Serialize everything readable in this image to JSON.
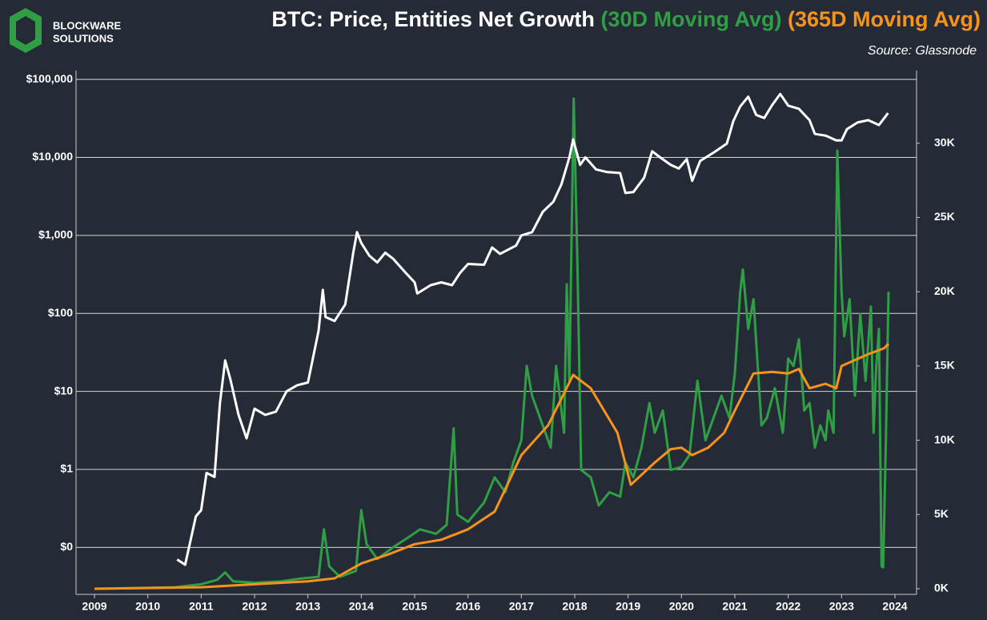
{
  "logo_text": [
    "BLOCKWARE",
    "SOLUTIONS"
  ],
  "chart_data": {
    "type": "line",
    "title": "BTC: Price, Entities Net Growth",
    "source": "Source: Glassnode",
    "ylog": true,
    "grid": true,
    "xlim": [
      2008.655,
      2024.405
    ],
    "xticks": [
      2009,
      2010,
      2011,
      2012,
      2013,
      2014,
      2015,
      2016,
      2017,
      2018,
      2019,
      2020,
      2021,
      2022,
      2023,
      2024
    ],
    "ylim": [
      0.025,
      130000
    ],
    "yticks": [
      {
        "value": 0.1,
        "label": "$0"
      },
      {
        "value": 1,
        "label": "$1"
      },
      {
        "value": 10,
        "label": "$10"
      },
      {
        "value": 100,
        "label": "$100"
      },
      {
        "value": 1000,
        "label": "$1,000"
      },
      {
        "value": 10000,
        "label": "$10,000"
      },
      {
        "value": 100000,
        "label": "$100,000"
      }
    ],
    "y2lim": [
      -380,
      34900
    ],
    "y2ticks": [
      {
        "value": 0,
        "label": "0K"
      },
      {
        "value": 5000,
        "label": "5K"
      },
      {
        "value": 10000,
        "label": "10K"
      },
      {
        "value": 15000,
        "label": "15K"
      },
      {
        "value": 20000,
        "label": "20K"
      },
      {
        "value": 25000,
        "label": "25K"
      },
      {
        "value": 30000,
        "label": "30K"
      }
    ],
    "series": [
      {
        "color": "#ffffff",
        "x": [
          2010.55,
          2010.7,
          2010.9,
          2011.0,
          2011.1,
          2011.25,
          2011.35,
          2011.45,
          2011.55,
          2011.7,
          2011.85,
          2011.95,
          2012.0,
          2012.2,
          2012.4,
          2012.6,
          2012.8,
          2013.0,
          2013.2,
          2013.28,
          2013.33,
          2013.5,
          2013.7,
          2013.85,
          2013.92,
          2014.0,
          2014.15,
          2014.3,
          2014.45,
          2014.6,
          2014.8,
          2015.0,
          2015.05,
          2015.3,
          2015.5,
          2015.7,
          2015.85,
          2016.0,
          2016.3,
          2016.45,
          2016.6,
          2016.9,
          2017.0,
          2017.2,
          2017.4,
          2017.6,
          2017.75,
          2017.9,
          2017.97,
          2018.1,
          2018.2,
          2018.4,
          2018.6,
          2018.85,
          2018.95,
          2019.1,
          2019.3,
          2019.45,
          2019.6,
          2019.8,
          2019.95,
          2020.1,
          2020.2,
          2020.35,
          2020.6,
          2020.85,
          2020.97,
          2021.1,
          2021.25,
          2021.4,
          2021.55,
          2021.7,
          2021.85,
          2022.0,
          2022.2,
          2022.4,
          2022.5,
          2022.7,
          2022.9,
          2023.0,
          2023.1,
          2023.3,
          2023.5,
          2023.7,
          2023.83,
          2023.87
        ],
        "values": [
          0.07,
          0.06,
          0.25,
          0.3,
          0.9,
          0.8,
          7,
          25,
          14,
          5,
          2.5,
          4.5,
          6,
          5,
          5.5,
          10,
          12,
          13,
          60,
          200,
          90,
          80,
          130,
          600,
          1100,
          800,
          550,
          450,
          600,
          500,
          350,
          250,
          180,
          230,
          250,
          230,
          330,
          430,
          420,
          700,
          580,
          740,
          1000,
          1100,
          2000,
          2700,
          4500,
          10000,
          17000,
          8000,
          10000,
          7000,
          6500,
          6300,
          3500,
          3600,
          5500,
          12000,
          10000,
          8000,
          7200,
          9500,
          5000,
          9000,
          11500,
          15000,
          29000,
          45000,
          60000,
          35000,
          32000,
          47000,
          65000,
          46000,
          42000,
          30000,
          20000,
          19000,
          16500,
          16500,
          23000,
          28000,
          30000,
          26000,
          34000,
          37000
        ]
      },
      {
        "name": "(30D Moving Avg)",
        "color": "#2f9e45",
        "axis": "y2",
        "x": [
          2009.0,
          2010.5,
          2011.0,
          2011.3,
          2011.45,
          2011.6,
          2012.0,
          2012.5,
          2012.9,
          2013.2,
          2013.3,
          2013.4,
          2013.6,
          2013.9,
          2014.0,
          2014.1,
          2014.3,
          2014.6,
          2014.9,
          2015.1,
          2015.4,
          2015.6,
          2015.73,
          2015.8,
          2016.0,
          2016.3,
          2016.5,
          2016.7,
          2016.85,
          2017.0,
          2017.1,
          2017.2,
          2017.4,
          2017.55,
          2017.65,
          2017.8,
          2017.85,
          2017.9,
          2017.98,
          2018.05,
          2018.12,
          2018.3,
          2018.45,
          2018.65,
          2018.85,
          2018.95,
          2019.1,
          2019.25,
          2019.4,
          2019.5,
          2019.65,
          2019.8,
          2020.0,
          2020.15,
          2020.3,
          2020.45,
          2020.6,
          2020.75,
          2020.9,
          2021.0,
          2021.1,
          2021.15,
          2021.25,
          2021.35,
          2021.5,
          2021.6,
          2021.75,
          2021.9,
          2022.0,
          2022.1,
          2022.2,
          2022.3,
          2022.4,
          2022.5,
          2022.6,
          2022.7,
          2022.75,
          2022.85,
          2022.92,
          2023.0,
          2023.05,
          2023.15,
          2023.25,
          2023.35,
          2023.45,
          2023.55,
          2023.6,
          2023.65,
          2023.7,
          2023.75,
          2023.78,
          2023.83,
          2023.88
        ],
        "values": [
          0,
          100,
          300,
          600,
          1100,
          500,
          400,
          500,
          700,
          800,
          4000,
          1500,
          800,
          1200,
          5300,
          3000,
          2000,
          2800,
          3500,
          4000,
          3700,
          4300,
          10800,
          5000,
          4500,
          5800,
          7500,
          6500,
          8500,
          10000,
          15000,
          13000,
          11000,
          9500,
          15000,
          10500,
          20500,
          14000,
          33000,
          22000,
          8000,
          7500,
          5600,
          6500,
          6200,
          8500,
          7500,
          9500,
          12500,
          10500,
          12000,
          8000,
          8200,
          9000,
          14000,
          10000,
          11500,
          13000,
          11500,
          14500,
          20000,
          21500,
          17500,
          19500,
          11000,
          11500,
          13500,
          10500,
          15500,
          15000,
          16800,
          12000,
          12500,
          9500,
          11000,
          10000,
          12000,
          10500,
          29500,
          20000,
          17000,
          19500,
          13000,
          18500,
          14000,
          19000,
          10500,
          15000,
          17500,
          1500,
          1450,
          10000,
          20000
        ]
      },
      {
        "name": "(365D Moving Avg)",
        "color": "#f7931a",
        "axis": "y2",
        "x": [
          2009.0,
          2011.0,
          2012.0,
          2013.0,
          2013.5,
          2014.0,
          2014.5,
          2015.0,
          2015.5,
          2016.0,
          2016.5,
          2017.0,
          2017.5,
          2017.97,
          2018.3,
          2018.8,
          2019.05,
          2019.5,
          2019.8,
          2020.0,
          2020.2,
          2020.5,
          2020.8,
          2021.0,
          2021.35,
          2021.7,
          2022.0,
          2022.2,
          2022.4,
          2022.7,
          2022.9,
          2023.0,
          2023.5,
          2023.8,
          2023.88
        ],
        "values": [
          0,
          100,
          300,
          500,
          700,
          1700,
          2300,
          3000,
          3300,
          4000,
          5200,
          9000,
          11000,
          14400,
          13500,
          10500,
          7000,
          8500,
          9400,
          9500,
          9000,
          9500,
          10500,
          12000,
          14500,
          14600,
          14500,
          14800,
          13500,
          13800,
          13500,
          15000,
          15800,
          16200,
          16500
        ]
      }
    ]
  }
}
